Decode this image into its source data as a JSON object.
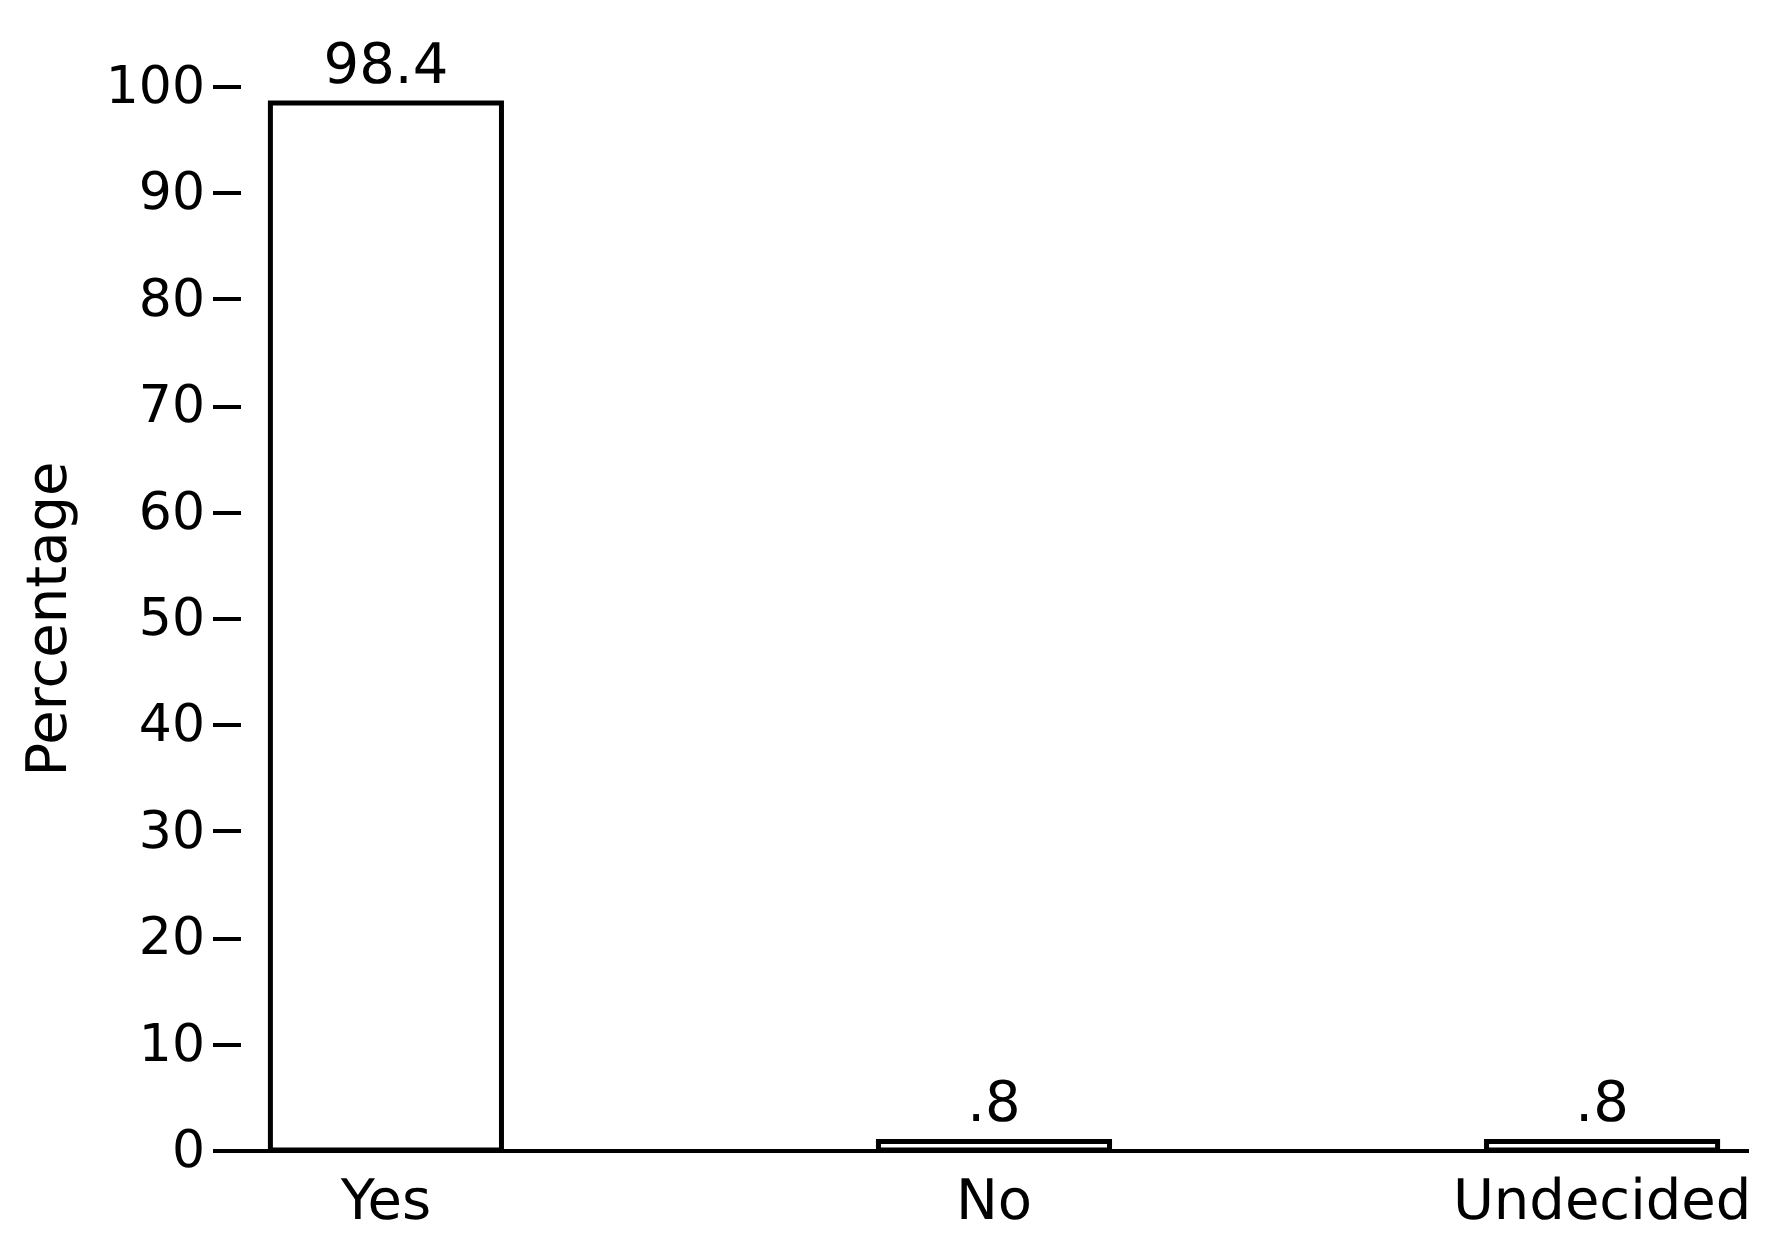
{
  "chart_data": {
    "type": "bar",
    "ylabel": "Percentage",
    "categories": [
      "Yes",
      "No",
      "Undecided"
    ],
    "values": [
      98.4,
      0.8,
      0.8
    ],
    "value_labels": [
      "98.4",
      ".8",
      ".8"
    ],
    "color": "#ffffff",
    "ylim": [
      0,
      100
    ],
    "yticks": [
      0,
      10,
      20,
      30,
      40,
      50,
      60,
      70,
      80,
      90,
      100
    ],
    "grid": false
  }
}
